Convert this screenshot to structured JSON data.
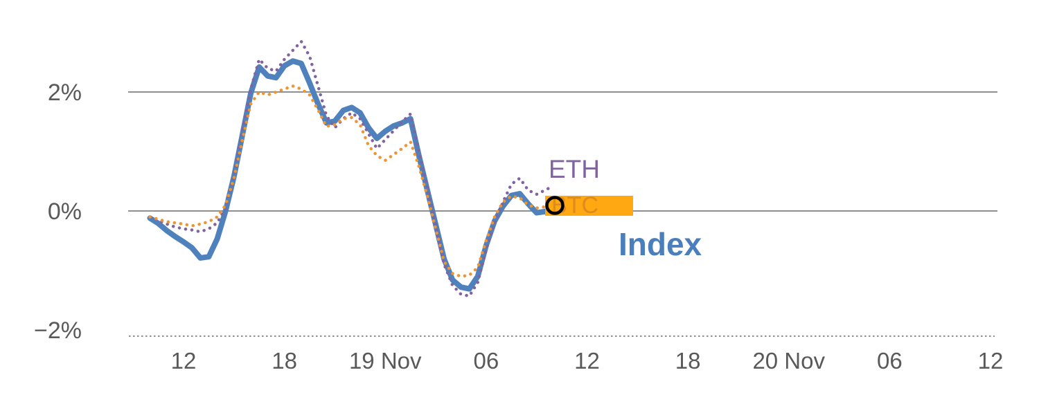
{
  "page": {
    "background": "#ffffff"
  },
  "chart_data": {
    "type": "line",
    "title": "",
    "xlabel": "",
    "ylabel": "",
    "grid": "horizontal gridlines at 2% and 0%, dashed baseline near -2%",
    "legend": "inline labels at right end of lines",
    "y_ticks": [
      {
        "value": 2,
        "label": "2%"
      },
      {
        "value": 0,
        "label": "0%"
      },
      {
        "value": -2,
        "label": "−2%"
      }
    ],
    "y_range": [
      -2.3,
      3.4
    ],
    "x_unit": "time, ticks every 6 hours",
    "x_ticks": [
      {
        "t": 2,
        "label": "12"
      },
      {
        "t": 8,
        "label": "18"
      },
      {
        "t": 14,
        "label": "19 Nov"
      },
      {
        "t": 20,
        "label": "06"
      },
      {
        "t": 26,
        "label": "12"
      },
      {
        "t": 32,
        "label": "18"
      },
      {
        "t": 38,
        "label": "20 Nov"
      },
      {
        "t": 44,
        "label": "06"
      },
      {
        "t": 50,
        "label": "12"
      }
    ],
    "x_range": [
      -1.5,
      50.3
    ],
    "x": [
      0,
      0.5,
      1,
      1.5,
      2,
      2.5,
      3,
      3.5,
      4,
      4.5,
      5,
      5.5,
      6,
      6.5,
      7,
      7.5,
      8,
      8.5,
      9,
      9.5,
      10,
      10.5,
      11,
      11.5,
      12,
      12.5,
      13,
      13.5,
      14,
      14.5,
      15,
      15.5,
      16,
      16.5,
      17,
      17.5,
      18,
      18.5,
      19,
      19.5,
      20,
      20.5,
      21,
      21.5,
      22,
      22.5,
      23,
      23.5,
      24
    ],
    "series": [
      {
        "name": "Index",
        "color": "#4f81bd",
        "style": "solid",
        "width": 8,
        "values": [
          -0.12,
          -0.21,
          -0.33,
          -0.43,
          -0.52,
          -0.62,
          -0.79,
          -0.77,
          -0.47,
          0.0,
          0.58,
          1.28,
          1.98,
          2.42,
          2.27,
          2.24,
          2.44,
          2.52,
          2.48,
          2.15,
          1.8,
          1.48,
          1.51,
          1.69,
          1.74,
          1.65,
          1.4,
          1.22,
          1.34,
          1.43,
          1.48,
          1.55,
          0.93,
          0.35,
          -0.23,
          -0.81,
          -1.16,
          -1.28,
          -1.31,
          -1.1,
          -0.58,
          -0.17,
          0.08,
          0.26,
          0.29,
          0.12,
          -0.03,
          -0.01,
          0.06
        ]
      },
      {
        "name": "ETH",
        "color": "#8064a2",
        "style": "dotted",
        "width": 4.5,
        "values": [
          -0.1,
          -0.16,
          -0.22,
          -0.27,
          -0.3,
          -0.32,
          -0.35,
          -0.3,
          -0.2,
          0.05,
          0.6,
          1.35,
          2.05,
          2.55,
          2.4,
          2.35,
          2.55,
          2.7,
          2.85,
          2.6,
          2.1,
          1.6,
          1.4,
          1.55,
          1.65,
          1.55,
          1.3,
          1.05,
          1.2,
          1.35,
          1.5,
          1.63,
          1.0,
          0.4,
          -0.25,
          -0.9,
          -1.25,
          -1.4,
          -1.43,
          -1.2,
          -0.65,
          -0.2,
          0.15,
          0.45,
          0.55,
          0.35,
          0.28,
          0.35,
          0.42
        ]
      },
      {
        "name": "BTC",
        "color": "#ed9433",
        "style": "dotted",
        "width": 4.5,
        "values": [
          -0.1,
          -0.14,
          -0.18,
          -0.2,
          -0.22,
          -0.25,
          -0.22,
          -0.18,
          -0.1,
          0.1,
          0.55,
          1.2,
          1.8,
          2.0,
          1.95,
          2.0,
          2.05,
          2.1,
          2.05,
          1.95,
          1.7,
          1.42,
          1.45,
          1.55,
          1.57,
          1.45,
          1.1,
          0.93,
          0.85,
          0.95,
          1.05,
          1.16,
          0.75,
          0.25,
          -0.3,
          -0.85,
          -1.05,
          -1.1,
          -1.08,
          -0.95,
          -0.5,
          -0.1,
          0.15,
          0.25,
          0.22,
          0.1,
          0.05,
          0.07,
          0.09
        ]
      }
    ],
    "annotations": [
      {
        "id": "eth-label",
        "text": "ETH",
        "color": "#8064a2",
        "bold": false
      },
      {
        "id": "btc-label",
        "text": "BTC",
        "color": "#dd8a1e",
        "bold": false,
        "highlight": "#ffa812"
      },
      {
        "id": "index-label",
        "text": "Index",
        "color": "#4a7ebc",
        "bold": true
      },
      {
        "id": "last-point-marker",
        "shape": "ring",
        "color": "#000000"
      }
    ],
    "colors": {
      "gridline": "#8f8f8f",
      "tick_label": "#595959"
    }
  }
}
